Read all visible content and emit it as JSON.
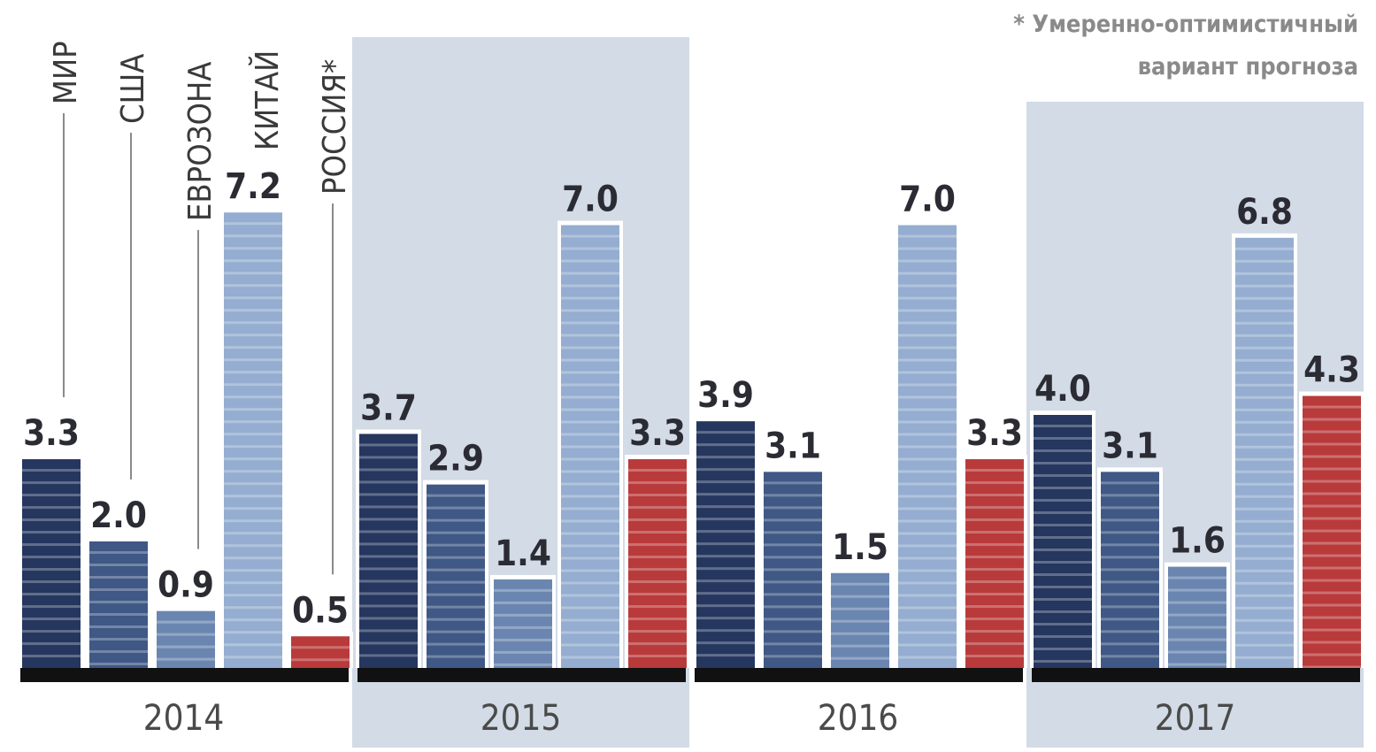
{
  "chart_data": {
    "type": "bar",
    "title": "",
    "xlabel": "",
    "ylabel": "",
    "ylim": [
      0,
      8
    ],
    "categories": [
      "2014",
      "2015",
      "2016",
      "2017"
    ],
    "series": [
      {
        "name": "МИР",
        "values": [
          3.3,
          3.7,
          3.9,
          4.0
        ],
        "color": "#25365f"
      },
      {
        "name": "США",
        "values": [
          2.0,
          2.9,
          3.1,
          3.1
        ],
        "color": "#3f5885"
      },
      {
        "name": "ЕВРОЗОНА",
        "values": [
          0.9,
          1.4,
          1.5,
          1.6
        ],
        "color": "#6a86b0"
      },
      {
        "name": "КИТАЙ",
        "values": [
          7.2,
          7.0,
          7.0,
          6.8
        ],
        "color": "#94add0"
      },
      {
        "name": "РОССИЯ*",
        "values": [
          0.5,
          3.3,
          3.3,
          4.3
        ],
        "color": "#b93a3b"
      }
    ],
    "value_labels": [
      [
        "3.3",
        "2.0",
        "0.9",
        "7.2",
        "0.5"
      ],
      [
        "3.7",
        "2.9",
        "1.4",
        "7.0",
        "3.3"
      ],
      [
        "3.9",
        "3.1",
        "1.5",
        "7.0",
        "3.3"
      ],
      [
        "4.0",
        "3.1",
        "1.6",
        "6.8",
        "4.3"
      ]
    ],
    "shaded_periods": [
      "2015",
      "2017"
    ],
    "shade_color": "#d2dbe6",
    "baseline_color": "#111111",
    "annotation": {
      "line1": "* Умеренно-оптимистичный",
      "line2": "вариант прогноза"
    }
  }
}
